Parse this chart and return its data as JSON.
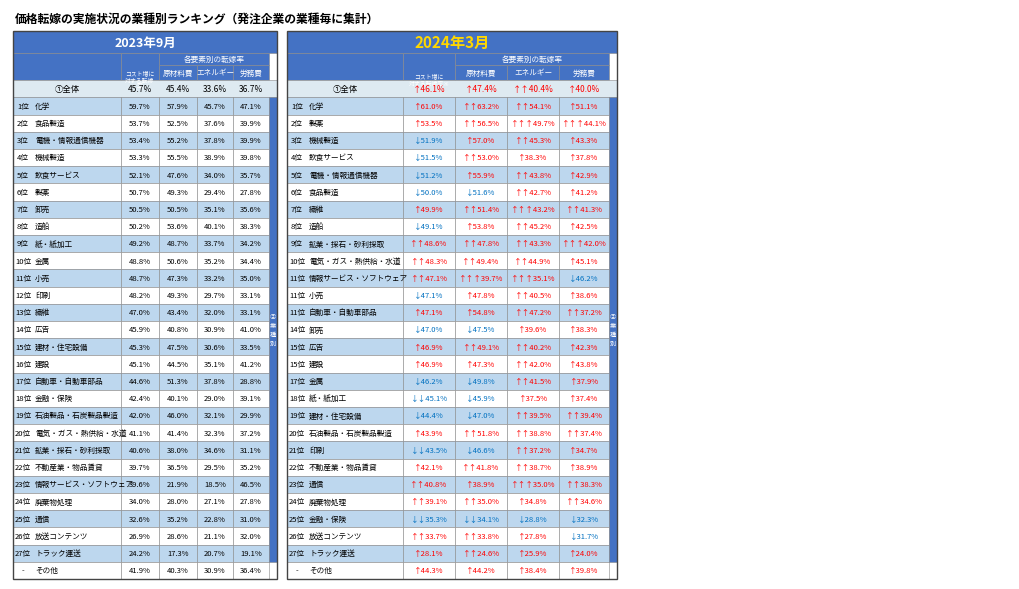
{
  "title": "価格転嫁の実施状況の業種別ランキング（発注企業の業種毎に集計）",
  "left_header_year": "2023年9月",
  "right_header_year": "2024年3月",
  "overall_left": [
    "①全体",
    "45.7%",
    "45.4%",
    "33.6%",
    "36.7%"
  ],
  "overall_right_vals": [
    "↑46.1%",
    "↑47.4%",
    "↑↑40.4%",
    "↑40.0%"
  ],
  "rows_left": [
    [
      "1位",
      "化学",
      "59.7%",
      "57.9%",
      "45.7%",
      "47.1%"
    ],
    [
      "2位",
      "食品製造",
      "53.7%",
      "52.5%",
      "37.6%",
      "39.9%"
    ],
    [
      "3位",
      "電機・情報通信機器",
      "53.4%",
      "55.2%",
      "37.8%",
      "39.9%"
    ],
    [
      "4位",
      "機械製造",
      "53.3%",
      "55.5%",
      "38.9%",
      "39.8%"
    ],
    [
      "5位",
      "飲食サービス",
      "52.1%",
      "47.6%",
      "34.0%",
      "35.7%"
    ],
    [
      "6位",
      "製薬",
      "50.7%",
      "49.3%",
      "29.4%",
      "27.8%"
    ],
    [
      "7位",
      "卸売",
      "50.5%",
      "50.5%",
      "35.1%",
      "35.6%"
    ],
    [
      "8位",
      "造船",
      "50.2%",
      "53.6%",
      "40.1%",
      "38.3%"
    ],
    [
      "9位",
      "紙・紙加工",
      "49.2%",
      "48.7%",
      "33.7%",
      "34.2%"
    ],
    [
      "10位",
      "金属",
      "48.8%",
      "50.6%",
      "35.2%",
      "34.4%"
    ],
    [
      "11位",
      "小売",
      "48.7%",
      "47.3%",
      "33.2%",
      "35.0%"
    ],
    [
      "12位",
      "印刷",
      "48.2%",
      "49.3%",
      "29.7%",
      "33.1%"
    ],
    [
      "13位",
      "繊維",
      "47.0%",
      "43.4%",
      "32.0%",
      "33.1%"
    ],
    [
      "14位",
      "広告",
      "45.9%",
      "40.8%",
      "30.9%",
      "41.0%"
    ],
    [
      "15位",
      "建材・住宅設備",
      "45.3%",
      "47.5%",
      "30.6%",
      "33.5%"
    ],
    [
      "16位",
      "建設",
      "45.1%",
      "44.5%",
      "35.1%",
      "41.2%"
    ],
    [
      "17位",
      "自動車・自動車部品",
      "44.6%",
      "51.3%",
      "37.8%",
      "28.8%"
    ],
    [
      "18位",
      "金融・保険",
      "42.4%",
      "40.1%",
      "29.0%",
      "39.1%"
    ],
    [
      "19位",
      "石油製品・石炭製品製造",
      "42.0%",
      "46.0%",
      "32.1%",
      "29.9%"
    ],
    [
      "20位",
      "電気・ガス・熱供給・水道",
      "41.1%",
      "41.4%",
      "32.3%",
      "37.2%"
    ],
    [
      "21位",
      "鉱業・採石・砂利採取",
      "40.6%",
      "38.0%",
      "34.6%",
      "31.1%"
    ],
    [
      "22位",
      "不動産業・物品賃貸",
      "39.7%",
      "36.5%",
      "29.5%",
      "35.2%"
    ],
    [
      "23位",
      "情報サービス・ソフトウェア",
      "39.6%",
      "21.9%",
      "18.5%",
      "46.5%"
    ],
    [
      "24位",
      "廃棄物処理",
      "34.0%",
      "28.0%",
      "27.1%",
      "27.8%"
    ],
    [
      "25位",
      "通信",
      "32.6%",
      "35.2%",
      "22.8%",
      "31.0%"
    ],
    [
      "26位",
      "放送コンテンツ",
      "26.9%",
      "28.6%",
      "21.1%",
      "32.0%"
    ],
    [
      "27位",
      "トラック運送",
      "24.2%",
      "17.3%",
      "20.7%",
      "19.1%"
    ],
    [
      "-",
      "その他",
      "41.9%",
      "40.3%",
      "30.9%",
      "36.4%"
    ]
  ],
  "rows_right": [
    [
      "1位",
      "化学",
      "↑61.0%",
      "↑↑63.2%",
      "↑↑54.1%",
      "↑51.1%"
    ],
    [
      "2位",
      "製薬",
      "↑53.5%",
      "↑↑56.5%",
      "↑↑↑49.7%",
      "↑↑↑44.1%"
    ],
    [
      "3位",
      "機械製造",
      "↓51.9%",
      "↑57.0%",
      "↑↑45.3%",
      "↑43.3%"
    ],
    [
      "4位",
      "飲食サービス",
      "↓51.5%",
      "↑↑53.0%",
      "↑38.3%",
      "↑37.8%"
    ],
    [
      "5位",
      "電機・情報通信機器",
      "↓51.2%",
      "↑55.9%",
      "↑↑43.8%",
      "↑42.9%"
    ],
    [
      "6位",
      "食品製造",
      "↓50.0%",
      "↓51.6%",
      "↑↑42.7%",
      "↑41.2%"
    ],
    [
      "7位",
      "繊維",
      "↑49.9%",
      "↑↑51.4%",
      "↑↑↑43.2%",
      "↑↑41.3%"
    ],
    [
      "8位",
      "造船",
      "↓49.1%",
      "↑53.8%",
      "↑↑45.2%",
      "↑42.5%"
    ],
    [
      "9位",
      "鉱業・採石・砂利採取",
      "↑↑48.6%",
      "↑↑47.8%",
      "↑↑43.3%",
      "↑↑↑42.0%"
    ],
    [
      "10位",
      "電気・ガス・熱供給・水道",
      "↑↑48.3%",
      "↑↑49.4%",
      "↑↑44.9%",
      "↑45.1%"
    ],
    [
      "11位",
      "情報サービス・ソフトウェア",
      "↑↑47.1%",
      "↑↑↑39.7%",
      "↑↑↑35.1%",
      "↓46.2%"
    ],
    [
      "11位",
      "小売",
      "↓47.1%",
      "↑47.8%",
      "↑↑40.5%",
      "↑38.6%"
    ],
    [
      "11位",
      "自動車・自動車部品",
      "↑47.1%",
      "↑54.8%",
      "↑↑47.2%",
      "↑↑37.2%"
    ],
    [
      "14位",
      "卸売",
      "↓47.0%",
      "↓47.5%",
      "↑39.6%",
      "↑38.3%"
    ],
    [
      "15位",
      "広告",
      "↑46.9%",
      "↑↑49.1%",
      "↑↑40.2%",
      "↑42.3%"
    ],
    [
      "15位",
      "建設",
      "↑46.9%",
      "↑47.3%",
      "↑↑42.0%",
      "↑43.8%"
    ],
    [
      "17位",
      "金属",
      "↓46.2%",
      "↓49.8%",
      "↑↑41.5%",
      "↑37.9%"
    ],
    [
      "18位",
      "紙・紙加工",
      "↓↓45.1%",
      "↓45.9%",
      "↑37.5%",
      "↑37.4%"
    ],
    [
      "19位",
      "建材・住宅設備",
      "↓44.4%",
      "↓47.0%",
      "↑↑39.5%",
      "↑↑39.4%"
    ],
    [
      "20位",
      "石油製品・石炭製品製造",
      "↑43.9%",
      "↑↑51.8%",
      "↑↑38.8%",
      "↑↑37.4%"
    ],
    [
      "21位",
      "印刷",
      "↓↓43.5%",
      "↓46.6%",
      "↑↑37.2%",
      "↑34.7%"
    ],
    [
      "22位",
      "不動産業・物品賃貸",
      "↑42.1%",
      "↑↑41.8%",
      "↑↑38.7%",
      "↑38.9%"
    ],
    [
      "23位",
      "通信",
      "↑↑40.8%",
      "↑38.9%",
      "↑↑↑35.0%",
      "↑↑38.3%"
    ],
    [
      "24位",
      "廃棄物処理",
      "↑↑39.1%",
      "↑↑35.0%",
      "↑34.8%",
      "↑↑34.6%"
    ],
    [
      "25位",
      "金融・保険",
      "↓↓35.3%",
      "↓↓34.1%",
      "↓28.8%",
      "↓32.3%"
    ],
    [
      "26位",
      "放送コンテンツ",
      "↑↑33.7%",
      "↑↑33.8%",
      "↑27.8%",
      "↓31.7%"
    ],
    [
      "27位",
      "トラック運送",
      "↑28.1%",
      "↑↑24.6%",
      "↑25.9%",
      "↑24.0%"
    ],
    [
      "-",
      "その他",
      "↑44.3%",
      "↑44.2%",
      "↑38.4%",
      "↑39.8%"
    ]
  ],
  "bg_header": "#4472C4",
  "bg_light_blue": "#BDD7EE",
  "bg_white": "#FFFFFF",
  "bg_overall": "#DEEAF1",
  "text_red": "#FF0000",
  "text_blue": "#0070C0",
  "text_dark": "#000000",
  "text_header": "#FFFFFF",
  "text_year_right": "#FFD700"
}
